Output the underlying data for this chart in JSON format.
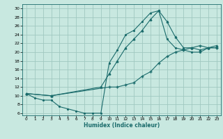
{
  "xlabel": "Humidex (Indice chaleur)",
  "bg_color": "#c8e8e0",
  "grid_color": "#a0c8c0",
  "line_color": "#1a6b6b",
  "xlim": [
    -0.5,
    23.5
  ],
  "ylim": [
    5.5,
    31
  ],
  "xticks": [
    0,
    1,
    2,
    3,
    4,
    5,
    6,
    7,
    8,
    9,
    10,
    11,
    12,
    13,
    14,
    15,
    16,
    17,
    18,
    19,
    20,
    21,
    22,
    23
  ],
  "yticks": [
    6,
    8,
    10,
    12,
    14,
    16,
    18,
    20,
    22,
    24,
    26,
    28,
    30
  ],
  "line1_x": [
    0,
    1,
    2,
    3,
    4,
    5,
    6,
    7,
    8,
    9,
    10,
    11,
    12,
    13,
    14,
    15,
    16,
    17,
    18,
    19,
    20,
    21,
    22,
    23
  ],
  "line1_y": [
    10.5,
    9.5,
    9.0,
    9.0,
    7.5,
    7.0,
    6.5,
    6.0,
    6.0,
    6.0,
    17.5,
    20.5,
    24.0,
    25.0,
    27.0,
    29.0,
    29.5,
    23.0,
    21.0,
    20.5,
    20.0,
    20.0,
    21.0,
    21.0
  ],
  "line2_x": [
    0,
    3,
    10,
    11,
    12,
    13,
    14,
    15,
    16,
    17,
    18,
    19,
    20,
    21,
    22,
    23
  ],
  "line2_y": [
    10.5,
    10.0,
    12.0,
    12.0,
    12.5,
    13.0,
    14.5,
    15.5,
    17.5,
    19.0,
    20.0,
    20.5,
    21.0,
    21.5,
    21.0,
    21.0
  ],
  "line3_x": [
    0,
    3,
    9,
    10,
    11,
    12,
    13,
    14,
    15,
    16,
    17,
    18,
    19,
    20,
    21,
    22,
    23
  ],
  "line3_y": [
    10.5,
    10.0,
    12.0,
    15.0,
    18.0,
    21.0,
    23.0,
    25.0,
    27.5,
    29.5,
    27.0,
    23.5,
    21.0,
    21.0,
    20.5,
    21.0,
    21.5
  ]
}
